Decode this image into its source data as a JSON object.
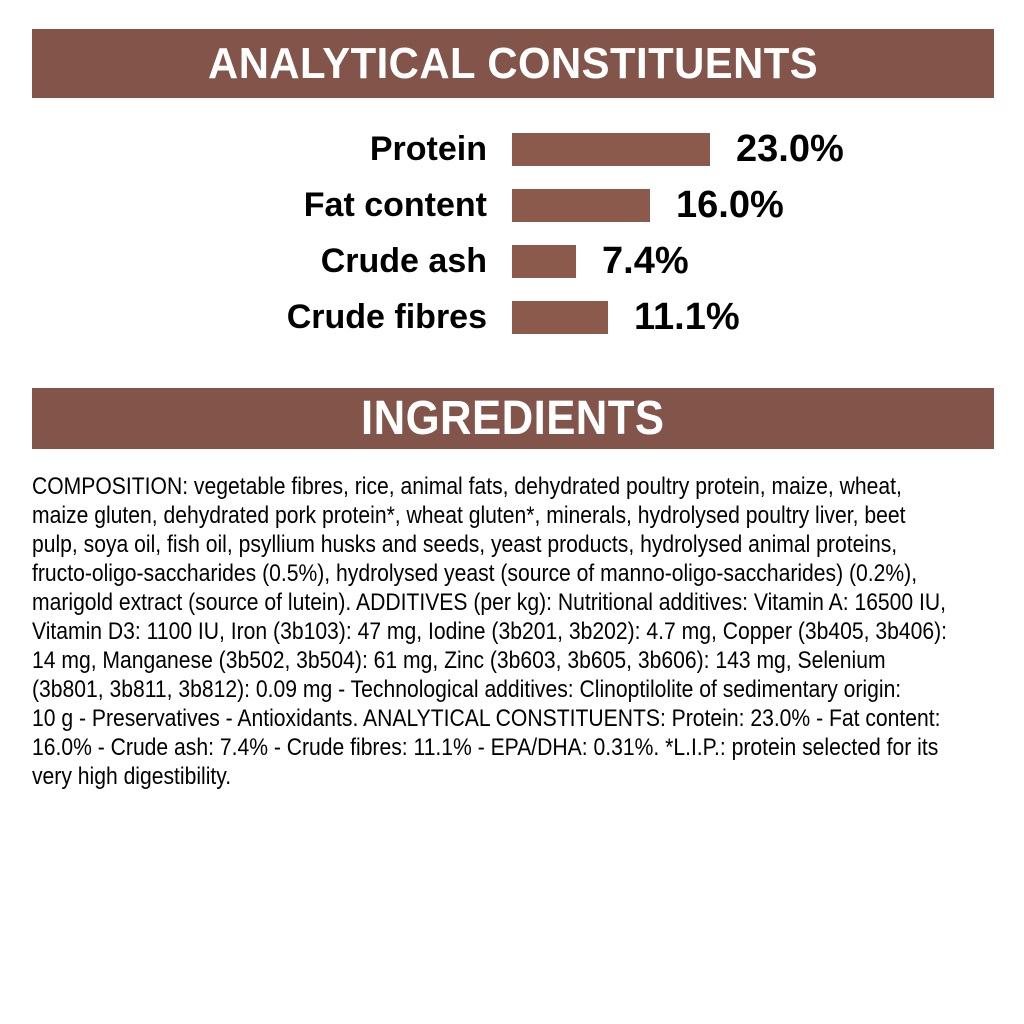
{
  "analytical_section": {
    "title": "ANALYTICAL CONSTITUENTS"
  },
  "chart_data": {
    "type": "bar",
    "orientation": "horizontal",
    "title": "ANALYTICAL CONSTITUENTS",
    "categories": [
      "Protein",
      "Fat content",
      "Crude ash",
      "Crude fibres"
    ],
    "values": [
      23.0,
      16.0,
      7.4,
      11.1
    ],
    "value_labels": [
      "23.0%",
      "16.0%",
      "7.4%",
      "11.1%"
    ],
    "unit": "%",
    "xlim": [
      0,
      23
    ],
    "grid": false,
    "legend": false,
    "bar_color": "#8B5A4D"
  },
  "ingredients_section": {
    "title": "INGREDIENTS",
    "lines": [
      "COMPOSITION: vegetable fibres, rice, animal fats, dehydrated poultry protein, maize, wheat,",
      "maize gluten, dehydrated pork protein*, wheat gluten*, minerals, hydrolysed poultry liver, beet",
      "pulp, soya oil, fish oil, psyllium husks and seeds, yeast products, hydrolysed animal proteins,",
      "fructo-oligo-saccharides (0.5%), hydrolysed yeast (source of manno-oligo-saccharides) (0.2%),",
      "marigold extract (source of lutein). ADDITIVES (per kg): Nutritional additives: Vitamin A: 16500 IU,",
      "Vitamin D3: 1100 IU, Iron (3b103): 47 mg, Iodine (3b201, 3b202): 4.7 mg, Copper (3b405, 3b406):",
      "14 mg, Manganese (3b502, 3b504): 61 mg, Zinc (3b603, 3b605, 3b606): 143 mg, Selenium",
      "(3b801, 3b811, 3b812): 0.09 mg - Technological additives: Clinoptilolite of sedimentary origin:",
      "10 g - Preservatives - Antioxidants. ANALYTICAL CONSTITUENTS: Protein: 23.0% - Fat content:",
      "16.0% - Crude ash: 7.4% - Crude fibres: 11.1% - EPA/DHA: 0.31%. *L.I.P.: protein selected for its",
      "very high digestibility."
    ]
  },
  "colors": {
    "banner_brown": "#82544A",
    "bar_brown": "#8B5A4D",
    "banner_text": "#FFFFFF",
    "body_text": "#000000",
    "background": "#FFFFFF"
  }
}
